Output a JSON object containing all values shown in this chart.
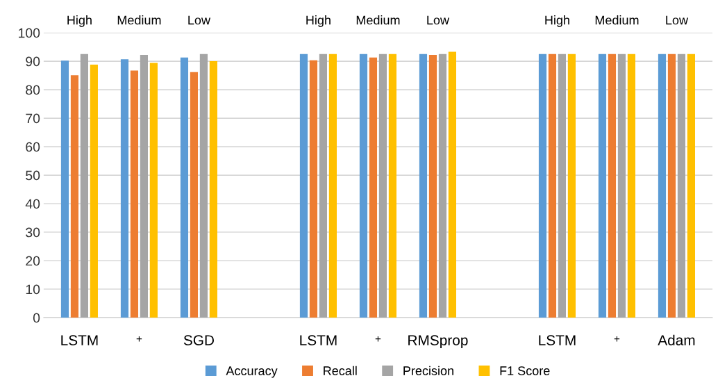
{
  "chart_data": {
    "type": "bar",
    "categories": [
      "High",
      "Medium",
      "Low",
      null,
      "High",
      "Medium",
      "Low",
      null,
      "High",
      "Medium",
      "Low"
    ],
    "series": [
      {
        "name": "Accuracy",
        "color": "#5b9bd5",
        "values": [
          90.2,
          90.7,
          91.3,
          null,
          92.5,
          92.5,
          92.5,
          null,
          92.5,
          92.5,
          92.5
        ]
      },
      {
        "name": "Recall",
        "color": "#ed7d31",
        "values": [
          85.1,
          86.7,
          86.2,
          null,
          90.3,
          91.3,
          92.2,
          null,
          92.5,
          92.5,
          92.5
        ]
      },
      {
        "name": "Precision",
        "color": "#a5a5a5",
        "values": [
          92.5,
          92.2,
          92.5,
          null,
          92.5,
          92.5,
          92.5,
          null,
          92.5,
          92.5,
          92.5
        ]
      },
      {
        "name": "F1 Score",
        "color": "#ffc000",
        "values": [
          88.8,
          89.4,
          90.0,
          null,
          92.5,
          92.5,
          93.3,
          null,
          92.5,
          92.5,
          92.5
        ]
      }
    ],
    "ylim": [
      0,
      100
    ],
    "yticks": [
      0,
      10,
      20,
      30,
      40,
      50,
      60,
      70,
      80,
      90,
      100
    ],
    "grid": "y",
    "legend": "bottom",
    "annotations": [
      "LSTM",
      "+",
      "SGD",
      "LSTM",
      "+",
      "RMSprop",
      "LSTM",
      "+",
      "Adam"
    ]
  }
}
